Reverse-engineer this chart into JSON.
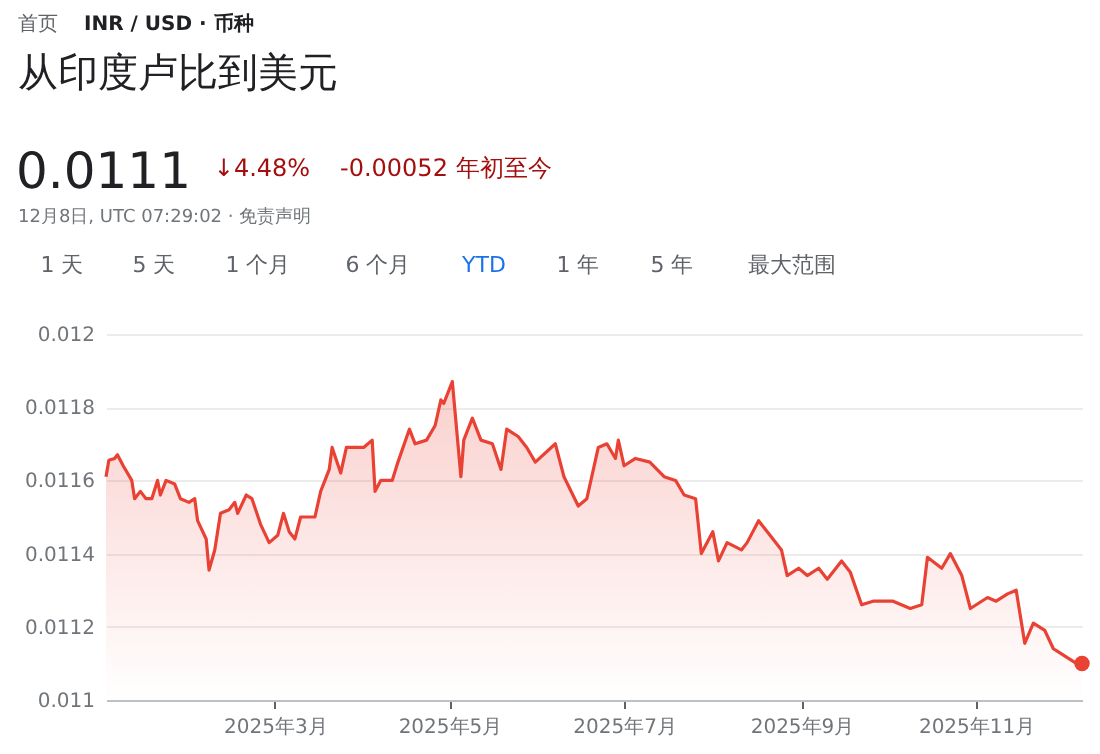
{
  "chart_data": {
    "type": "area",
    "title": "从印度卢比到美元",
    "annotations": [
      "首页",
      "INR / USD · 币种",
      "0.0111",
      "↓4.48%",
      "-0.00052 年初至今",
      "12月8日, UTC 07:29:02 · 免责声明",
      "1 天",
      "5 天",
      "1 个月",
      "6 个月",
      "YTD",
      "1 年",
      "5 年",
      "最大范围"
    ],
    "xlim": [
      "2025-01-01",
      "2025-12-08"
    ],
    "xticks": [
      {
        "value": "2025-03-01",
        "label": "2025年3月"
      },
      {
        "value": "2025-05-01",
        "label": "2025年5月"
      },
      {
        "value": "2025-07-01",
        "label": "2025年7月"
      },
      {
        "value": "2025-09-01",
        "label": "2025年9月"
      },
      {
        "value": "2025-11-01",
        "label": "2025年11月"
      }
    ],
    "ylim": [
      0.011,
      0.012
    ],
    "yticks": [
      0.011,
      0.0112,
      0.0114,
      0.0116,
      0.0118,
      0.012
    ],
    "grid": "y",
    "series": [
      {
        "color": "#e94235",
        "marker": "none",
        "x": [
          "2025-01-01",
          "2025-01-02",
          "2025-01-04",
          "2025-01-05",
          "2025-01-07",
          "2025-01-10",
          "2025-01-11",
          "2025-01-13",
          "2025-01-15",
          "2025-01-17",
          "2025-01-19",
          "2025-01-20",
          "2025-01-22",
          "2025-01-25",
          "2025-01-27",
          "2025-01-30",
          "2025-02-01",
          "2025-02-02",
          "2025-02-05",
          "2025-02-06",
          "2025-02-08",
          "2025-02-10",
          "2025-02-13",
          "2025-02-15",
          "2025-02-16",
          "2025-02-19",
          "2025-02-21",
          "2025-02-24",
          "2025-02-27",
          "2025-03-02",
          "2025-03-04",
          "2025-03-06",
          "2025-03-08",
          "2025-03-10",
          "2025-03-15",
          "2025-03-17",
          "2025-03-20",
          "2025-03-21",
          "2025-03-24",
          "2025-03-26",
          "2025-03-29",
          "2025-04-01",
          "2025-04-04",
          "2025-04-05",
          "2025-04-07",
          "2025-04-11",
          "2025-04-13",
          "2025-04-17",
          "2025-04-19",
          "2025-04-23",
          "2025-04-26",
          "2025-04-28",
          "2025-04-29",
          "2025-05-02",
          "2025-05-05",
          "2025-05-06",
          "2025-05-09",
          "2025-05-12",
          "2025-05-16",
          "2025-05-19",
          "2025-05-21",
          "2025-05-25",
          "2025-05-28",
          "2025-05-31",
          "2025-06-07",
          "2025-06-10",
          "2025-06-15",
          "2025-06-18",
          "2025-06-22",
          "2025-06-25",
          "2025-06-28",
          "2025-06-29",
          "2025-07-01",
          "2025-07-05",
          "2025-07-10",
          "2025-07-15",
          "2025-07-19",
          "2025-07-22",
          "2025-07-26",
          "2025-07-28",
          "2025-08-01",
          "2025-08-03",
          "2025-08-06",
          "2025-08-11",
          "2025-08-13",
          "2025-08-17",
          "2025-08-21",
          "2025-08-25",
          "2025-08-27",
          "2025-08-31",
          "2025-09-03",
          "2025-09-07",
          "2025-09-10",
          "2025-09-15",
          "2025-09-18",
          "2025-09-22",
          "2025-09-26",
          "2025-10-03",
          "2025-10-09",
          "2025-10-13",
          "2025-10-15",
          "2025-10-20",
          "2025-10-23",
          "2025-10-27",
          "2025-10-30",
          "2025-11-05",
          "2025-11-08",
          "2025-11-12",
          "2025-11-15",
          "2025-11-18",
          "2025-11-21",
          "2025-11-25",
          "2025-11-28",
          "2025-11-30",
          "2025-12-06",
          "2025-12-08"
        ],
        "values": [
          0.01161,
          0.011655,
          0.01166,
          0.01167,
          0.01164,
          0.0116,
          0.01155,
          0.01157,
          0.01155,
          0.01155,
          0.0116,
          0.01156,
          0.0116,
          0.01159,
          0.01155,
          0.01154,
          0.01155,
          0.01149,
          0.01144,
          0.011355,
          0.01141,
          0.01151,
          0.01152,
          0.01154,
          0.01151,
          0.01156,
          0.01155,
          0.01148,
          0.01143,
          0.01145,
          0.01151,
          0.01146,
          0.01144,
          0.0115,
          0.0115,
          0.01157,
          0.01163,
          0.01169,
          0.01162,
          0.01169,
          0.01169,
          0.01169,
          0.01171,
          0.01157,
          0.0116,
          0.0116,
          0.01165,
          0.01174,
          0.0117,
          0.01171,
          0.01175,
          0.01182,
          0.01181,
          0.01187,
          0.01161,
          0.01171,
          0.01177,
          0.01171,
          0.0117,
          0.01163,
          0.01174,
          0.01172,
          0.01169,
          0.01165,
          0.0117,
          0.01161,
          0.01153,
          0.01155,
          0.01169,
          0.0117,
          0.01166,
          0.01171,
          0.01164,
          0.01166,
          0.01165,
          0.01161,
          0.0116,
          0.01156,
          0.01155,
          0.0114,
          0.01146,
          0.01138,
          0.01143,
          0.01141,
          0.01143,
          0.01149,
          0.01145,
          0.01141,
          0.01134,
          0.01136,
          0.01134,
          0.01136,
          0.01133,
          0.01138,
          0.01135,
          0.01126,
          0.01127,
          0.01127,
          0.01125,
          0.01126,
          0.01139,
          0.01136,
          0.0114,
          0.01134,
          0.01125,
          0.01128,
          0.01127,
          0.01129,
          0.0113,
          0.011155,
          0.01121,
          0.01119,
          0.01114,
          0.01113,
          0.0111,
          0.0111
        ]
      },
      {
        "type": "scatter",
        "color": "#e94235",
        "marker": "circle",
        "x": [
          "2025-12-08"
        ],
        "values": [
          0.0111
        ]
      }
    ]
  }
}
